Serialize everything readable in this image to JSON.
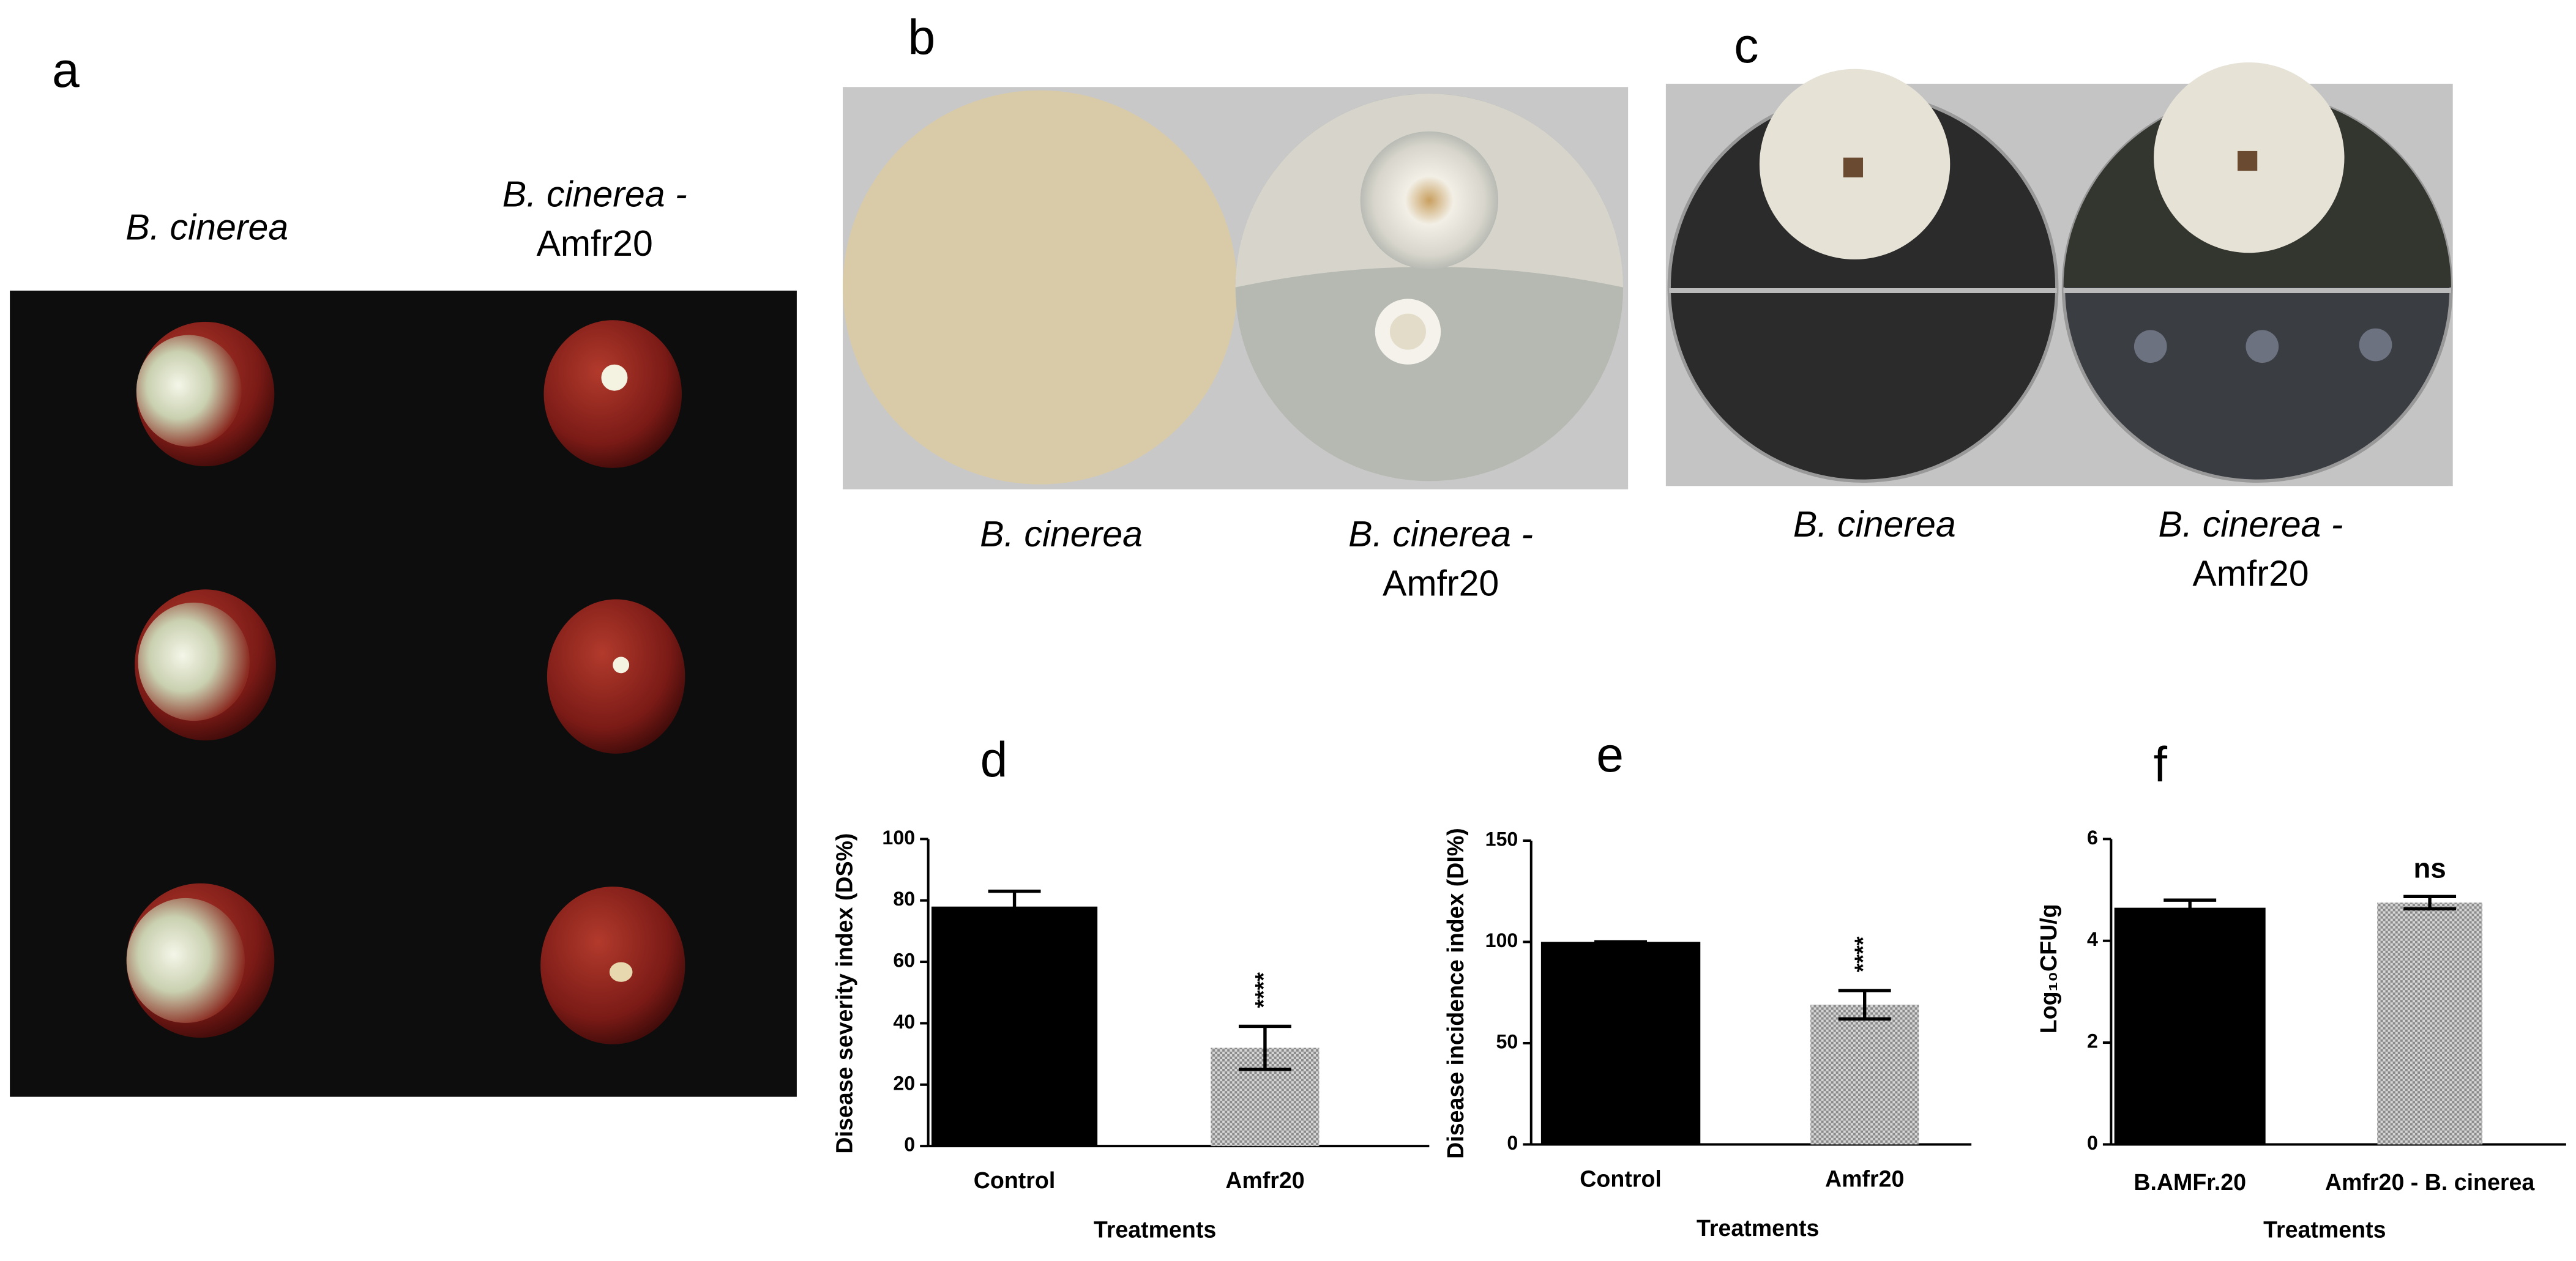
{
  "figure": {
    "panels": [
      {
        "label": "a",
        "captions": [
          [
            "B. cinerea"
          ],
          [
            "B. cinerea -",
            "Amfr20"
          ]
        ]
      },
      {
        "label": "b",
        "captions": [
          [
            "B. cinerea"
          ],
          [
            "B. cinerea -",
            "Amfr20"
          ]
        ]
      },
      {
        "label": "c",
        "captions": [
          [
            "B. cinerea"
          ],
          [
            "B. cinerea -",
            "Amfr20"
          ]
        ]
      }
    ]
  },
  "chart_data": [
    {
      "type": "bar",
      "title": "d",
      "ylabel": "Disease severity index (DS%)",
      "xlabel": "Treatments",
      "categories": [
        "Control",
        "Amfr20"
      ],
      "values": [
        78,
        32
      ],
      "errors": [
        5,
        7
      ],
      "colors": [
        "#000000",
        "#c4c4c4"
      ],
      "hatched": [
        false,
        true
      ],
      "value_annotations": [
        null,
        "****"
      ],
      "ylim": [
        0,
        100
      ],
      "yticks": [
        0,
        20,
        40,
        60,
        80,
        100
      ]
    },
    {
      "type": "bar",
      "title": "e",
      "ylabel": "Disease incidence index (DI%)",
      "xlabel": "Treatments",
      "categories": [
        "Control",
        "Amfr20"
      ],
      "values": [
        100,
        69
      ],
      "errors": [
        0,
        7
      ],
      "colors": [
        "#000000",
        "#c4c4c4"
      ],
      "hatched": [
        false,
        true
      ],
      "value_annotations": [
        null,
        "****"
      ],
      "ylim": [
        0,
        150
      ],
      "yticks": [
        0,
        50,
        100,
        150
      ]
    },
    {
      "type": "bar",
      "title": "f",
      "ylabel": "Log₁₀CFU/g",
      "xlabel": "Treatments",
      "categories": [
        "B.AMFr.20",
        "Amfr20 - B. cinerea"
      ],
      "values": [
        4.65,
        4.75
      ],
      "errors": [
        0.15,
        0.12
      ],
      "colors": [
        "#000000",
        "#c4c4c4"
      ],
      "hatched": [
        false,
        true
      ],
      "value_annotations": [
        null,
        "ns"
      ],
      "ylim": [
        0,
        6
      ],
      "yticks": [
        0,
        2,
        4,
        6
      ]
    }
  ]
}
